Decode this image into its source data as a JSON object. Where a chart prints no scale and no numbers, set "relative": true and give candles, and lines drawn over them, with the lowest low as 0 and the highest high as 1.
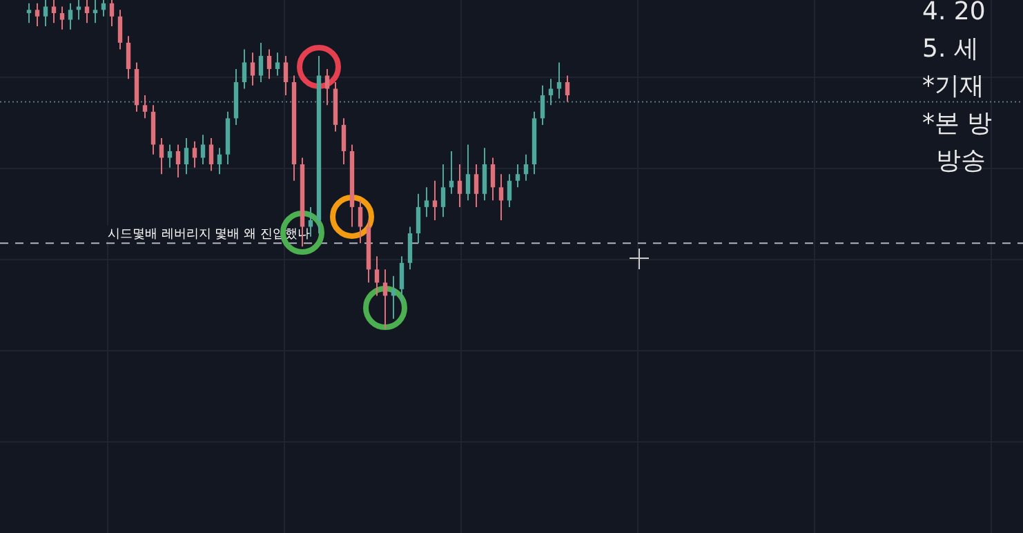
{
  "chart_data": {
    "type": "candlestick",
    "relative": true,
    "grid": true,
    "categories": [
      null,
      null,
      null,
      null,
      null,
      null,
      null,
      null,
      null,
      null,
      null,
      null,
      null,
      null,
      null,
      null,
      null,
      null,
      null,
      null,
      null,
      null,
      null,
      null,
      null,
      null,
      null,
      null,
      null,
      null,
      null,
      null,
      null,
      null,
      null,
      null,
      null,
      null,
      null,
      null,
      null,
      null,
      null,
      null,
      null,
      null,
      null,
      null,
      null,
      null,
      null,
      null,
      null,
      null,
      null,
      null,
      null,
      null,
      null,
      null,
      null,
      null,
      null,
      null,
      null,
      null
    ],
    "ohlc": [
      [
        0.96,
        0.99,
        0.93,
        0.97
      ],
      [
        0.97,
        0.99,
        0.92,
        0.95
      ],
      [
        0.95,
        1,
        0.92,
        0.98
      ],
      [
        0.98,
        1,
        0.93,
        0.96
      ],
      [
        0.96,
        0.98,
        0.91,
        0.94
      ],
      [
        0.94,
        0.99,
        0.91,
        0.97
      ],
      [
        0.97,
        1,
        0.94,
        0.98
      ],
      [
        0.98,
        1,
        0.93,
        0.96
      ],
      [
        0.96,
        1,
        0.93,
        0.97
      ],
      [
        0.97,
        1,
        0.95,
        0.99
      ],
      [
        0.99,
        1,
        0.92,
        0.95
      ],
      [
        0.95,
        0.97,
        0.85,
        0.87
      ],
      [
        0.87,
        0.89,
        0.76,
        0.79
      ],
      [
        0.79,
        0.81,
        0.66,
        0.68
      ],
      [
        0.68,
        0.71,
        0.64,
        0.66
      ],
      [
        0.66,
        0.68,
        0.53,
        0.56
      ],
      [
        0.56,
        0.58,
        0.47,
        0.52
      ],
      [
        0.52,
        0.56,
        0.49,
        0.54
      ],
      [
        0.54,
        0.56,
        0.46,
        0.5
      ],
      [
        0.5,
        0.58,
        0.47,
        0.55
      ],
      [
        0.55,
        0.57,
        0.49,
        0.52
      ],
      [
        0.52,
        0.59,
        0.5,
        0.56
      ],
      [
        0.56,
        0.58,
        0.48,
        0.5
      ],
      [
        0.5,
        0.55,
        0.47,
        0.53
      ],
      [
        0.53,
        0.66,
        0.5,
        0.64
      ],
      [
        0.64,
        0.79,
        0.62,
        0.75
      ],
      [
        0.75,
        0.85,
        0.73,
        0.81
      ],
      [
        0.81,
        0.84,
        0.74,
        0.77
      ],
      [
        0.77,
        0.87,
        0.75,
        0.83
      ],
      [
        0.83,
        0.85,
        0.76,
        0.79
      ],
      [
        0.79,
        0.84,
        0.77,
        0.81
      ],
      [
        0.81,
        0.83,
        0.71,
        0.75
      ],
      [
        0.75,
        0.77,
        0.45,
        0.5
      ],
      [
        0.5,
        0.52,
        0.25,
        0.31
      ],
      [
        0.31,
        0.37,
        0.28,
        0.33
      ],
      [
        0.33,
        0.83,
        0.29,
        0.77
      ],
      [
        0.77,
        0.79,
        0.68,
        0.73
      ],
      [
        0.73,
        0.75,
        0.6,
        0.62
      ],
      [
        0.62,
        0.64,
        0.5,
        0.54
      ],
      [
        0.54,
        0.56,
        0.31,
        0.37
      ],
      [
        0.37,
        0.39,
        0.26,
        0.31
      ],
      [
        0.31,
        0.33,
        0.14,
        0.18
      ],
      [
        0.18,
        0.22,
        0.1,
        0.14
      ],
      [
        0.14,
        0.18,
        0,
        0.1
      ],
      [
        0.1,
        0.16,
        0.03,
        0.12
      ],
      [
        0.12,
        0.22,
        0.08,
        0.2
      ],
      [
        0.2,
        0.31,
        0.18,
        0.29
      ],
      [
        0.29,
        0.41,
        0.26,
        0.37
      ],
      [
        0.37,
        0.43,
        0.34,
        0.39
      ],
      [
        0.39,
        0.45,
        0.33,
        0.37
      ],
      [
        0.37,
        0.5,
        0.34,
        0.43
      ],
      [
        0.43,
        0.54,
        0.41,
        0.45
      ],
      [
        0.45,
        0.5,
        0.37,
        0.41
      ],
      [
        0.41,
        0.56,
        0.39,
        0.47
      ],
      [
        0.47,
        0.5,
        0.37,
        0.41
      ],
      [
        0.41,
        0.55,
        0.39,
        0.5
      ],
      [
        0.5,
        0.52,
        0.39,
        0.43
      ],
      [
        0.43,
        0.47,
        0.33,
        0.39
      ],
      [
        0.39,
        0.47,
        0.37,
        0.45
      ],
      [
        0.45,
        0.5,
        0.43,
        0.47
      ],
      [
        0.47,
        0.53,
        0.45,
        0.5
      ],
      [
        0.5,
        0.66,
        0.47,
        0.64
      ],
      [
        0.64,
        0.74,
        0.62,
        0.71
      ],
      [
        0.71,
        0.76,
        0.68,
        0.73
      ],
      [
        0.73,
        0.81,
        0.7,
        0.75
      ],
      [
        0.75,
        0.77,
        0.69,
        0.71
      ]
    ],
    "ref_lines": [
      {
        "axis": "y",
        "value": 0.26,
        "label": "시드몇배 레버리지 몇배 왜 진입했나",
        "color": "#b2b5be",
        "line_style": "dashed"
      },
      {
        "axis": "y",
        "value": 0.69,
        "color": "#5d7a87",
        "line_style": "dotted"
      }
    ],
    "annotations": [
      "4. 20",
      "5. 세",
      "*기재",
      "*본 방",
      "방송"
    ]
  }
}
